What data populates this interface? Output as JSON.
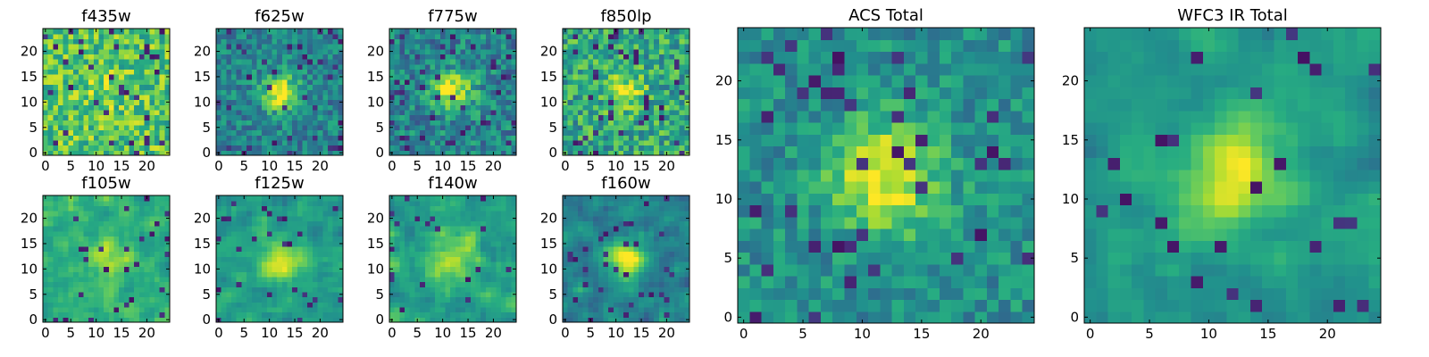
{
  "chart_data": [
    {
      "type": "heatmap",
      "title": "f435w",
      "x_ticks": [
        "0",
        "5",
        "10",
        "15",
        "20"
      ],
      "y_ticks": [
        "0",
        "5",
        "10",
        "15",
        "20"
      ],
      "xlim": [
        0,
        25
      ],
      "ylim": [
        0,
        25
      ]
    },
    {
      "type": "heatmap",
      "title": "f625w",
      "x_ticks": [
        "0",
        "5",
        "10",
        "15",
        "20"
      ],
      "y_ticks": [
        "0",
        "5",
        "10",
        "15",
        "20"
      ],
      "xlim": [
        0,
        25
      ],
      "ylim": [
        0,
        25
      ]
    },
    {
      "type": "heatmap",
      "title": "f775w",
      "x_ticks": [
        "0",
        "5",
        "10",
        "15",
        "20"
      ],
      "y_ticks": [
        "0",
        "5",
        "10",
        "15",
        "20"
      ],
      "xlim": [
        0,
        25
      ],
      "ylim": [
        0,
        25
      ]
    },
    {
      "type": "heatmap",
      "title": "f850lp",
      "x_ticks": [
        "0",
        "5",
        "10",
        "15",
        "20"
      ],
      "y_ticks": [
        "0",
        "5",
        "10",
        "15",
        "20"
      ],
      "xlim": [
        0,
        25
      ],
      "ylim": [
        0,
        25
      ]
    },
    {
      "type": "heatmap",
      "title": "f105w",
      "x_ticks": [
        "0",
        "5",
        "10",
        "15",
        "20"
      ],
      "y_ticks": [
        "0",
        "5",
        "10",
        "15",
        "20"
      ],
      "xlim": [
        0,
        25
      ],
      "ylim": [
        0,
        25
      ]
    },
    {
      "type": "heatmap",
      "title": "f125w",
      "x_ticks": [
        "0",
        "5",
        "10",
        "15",
        "20"
      ],
      "y_ticks": [
        "0",
        "5",
        "10",
        "15",
        "20"
      ],
      "xlim": [
        0,
        25
      ],
      "ylim": [
        0,
        25
      ]
    },
    {
      "type": "heatmap",
      "title": "f140w",
      "x_ticks": [
        "0",
        "5",
        "10",
        "15",
        "20"
      ],
      "y_ticks": [
        "0",
        "5",
        "10",
        "15",
        "20"
      ],
      "xlim": [
        0,
        25
      ],
      "ylim": [
        0,
        25
      ]
    },
    {
      "type": "heatmap",
      "title": "f160w",
      "x_ticks": [
        "0",
        "5",
        "10",
        "15",
        "20"
      ],
      "y_ticks": [
        "0",
        "5",
        "10",
        "15",
        "20"
      ],
      "xlim": [
        0,
        25
      ],
      "ylim": [
        0,
        25
      ]
    },
    {
      "type": "heatmap",
      "title": "ACS Total",
      "x_ticks": [
        "0",
        "5",
        "10",
        "15",
        "20"
      ],
      "y_ticks": [
        "0",
        "5",
        "10",
        "15",
        "20"
      ],
      "xlim": [
        0,
        25
      ],
      "ylim": [
        0,
        25
      ]
    },
    {
      "type": "heatmap",
      "title": "WFC3 IR Total",
      "x_ticks": [
        "0",
        "5",
        "10",
        "15",
        "20"
      ],
      "y_ticks": [
        "0",
        "5",
        "10",
        "15",
        "20"
      ],
      "xlim": [
        0,
        25
      ],
      "ylim": [
        0,
        25
      ]
    }
  ],
  "colormap": "viridis"
}
